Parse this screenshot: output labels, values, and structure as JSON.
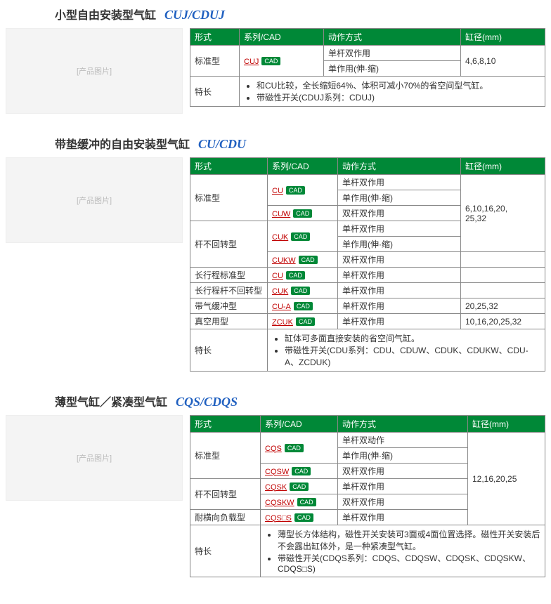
{
  "sections": [
    {
      "title_cn": "小型自由安装型气缸",
      "title_model": "CUJ/CDUJ",
      "img_placeholder": "[产品图片]",
      "headers": [
        "形式",
        "系列/CAD",
        "动作方式",
        "缸径(mm)"
      ],
      "col_widths": [
        "70px",
        "120px",
        "auto",
        "120px"
      ],
      "rows": [
        {
          "form": "标准型",
          "form_rowspan": 2,
          "series": "CUJ",
          "cad": true,
          "series_rowspan": 2,
          "action": "单杆双作用",
          "bore": "4,6,8,10",
          "bore_rowspan": 2
        },
        {
          "action": "单作用(伸·缩)"
        }
      ],
      "feature_label": "特长",
      "features": [
        "和CU比较，全长缩短64%、体积可减小70%的省空间型气缸。",
        "带磁性开关(CDUJ系列：CDUJ)"
      ]
    },
    {
      "title_cn": "带垫缓冲的自由安装型气缸",
      "title_model": "CU/CDU",
      "img_placeholder": "[产品图片]",
      "headers": [
        "形式",
        "系列/CAD",
        "动作方式",
        "缸径(mm)"
      ],
      "col_widths": [
        "110px",
        "100px",
        "auto",
        "120px"
      ],
      "rows": [
        {
          "form": "标准型",
          "form_rowspan": 3,
          "series": "CU",
          "cad": true,
          "series_rowspan": 2,
          "action": "单杆双作用",
          "bore": "6,10,16,20,\n25,32",
          "bore_rowspan": 5
        },
        {
          "action": "单作用(伸·缩)"
        },
        {
          "series": "CUW",
          "cad": true,
          "action": "双杆双作用"
        },
        {
          "form": "杆不回转型",
          "form_rowspan": 3,
          "series": "CUK",
          "cad": true,
          "series_rowspan": 2,
          "action": "单杆双作用"
        },
        {
          "action": "单作用(伸·缩)"
        },
        {
          "series": "CUKW",
          "cad": true,
          "action": "双杆双作用",
          "bore": "",
          "bore_plain": true
        },
        {
          "form": "长行程标准型",
          "series": "CU",
          "cad": true,
          "action": "单杆双作用",
          "bore": "",
          "bore_plain": true
        },
        {
          "form": "长行程杆不回转型",
          "series": "CUK",
          "cad": true,
          "action": "单杆双作用",
          "bore": "",
          "bore_plain": true
        },
        {
          "form": "带气缓冲型",
          "series": "CU-A",
          "cad": true,
          "action": "单杆双作用",
          "bore": "20,25,32"
        },
        {
          "form": "真空用型",
          "series": "ZCUK",
          "cad": true,
          "action": "单杆双作用",
          "bore": "10,16,20,25,32"
        }
      ],
      "feature_label": "特长",
      "features": [
        "缸体可多面直接安装的省空间气缸。",
        "带磁性开关(CDU系列：CDU、CDUW、CDUK、CDUKW、CDU-A、ZCDUK)"
      ]
    },
    {
      "title_cn": "薄型气缸／紧凑型气缸",
      "title_model": "CQS/CDQS",
      "img_placeholder": "[产品图片]",
      "headers": [
        "形式",
        "系列/CAD",
        "动作方式",
        "缸径(mm)"
      ],
      "col_widths": [
        "100px",
        "110px",
        "auto",
        "110px"
      ],
      "rows": [
        {
          "form": "标准型",
          "form_rowspan": 3,
          "series": "CQS",
          "cad": true,
          "series_rowspan": 2,
          "action": "单杆双动作",
          "bore": "12,16,20,25",
          "bore_rowspan": 6
        },
        {
          "action": "单作用(伸·缩)"
        },
        {
          "series": "CQSW",
          "cad": true,
          "action": "双杆双作用"
        },
        {
          "form": "杆不回转型",
          "form_rowspan": 2,
          "series": "CQSK",
          "cad": true,
          "action": "单杆双作用"
        },
        {
          "series": "CQSKW",
          "cad": true,
          "action": "双杆双作用"
        },
        {
          "form": "耐横向负载型",
          "series": "CQS□S",
          "cad": true,
          "action": "单杆双作用"
        }
      ],
      "feature_label": "特长",
      "features": [
        "薄型长方体结构，磁性开关安装可3面或4面位置选择。磁性开关安装后不会露出缸体外，是一种紧凑型气缸。",
        "带磁性开关(CDQS系列：CDQS、CDQSW、CDQSK、CDQSKW、CDQS□S)"
      ]
    }
  ],
  "cad_label": "CAD"
}
